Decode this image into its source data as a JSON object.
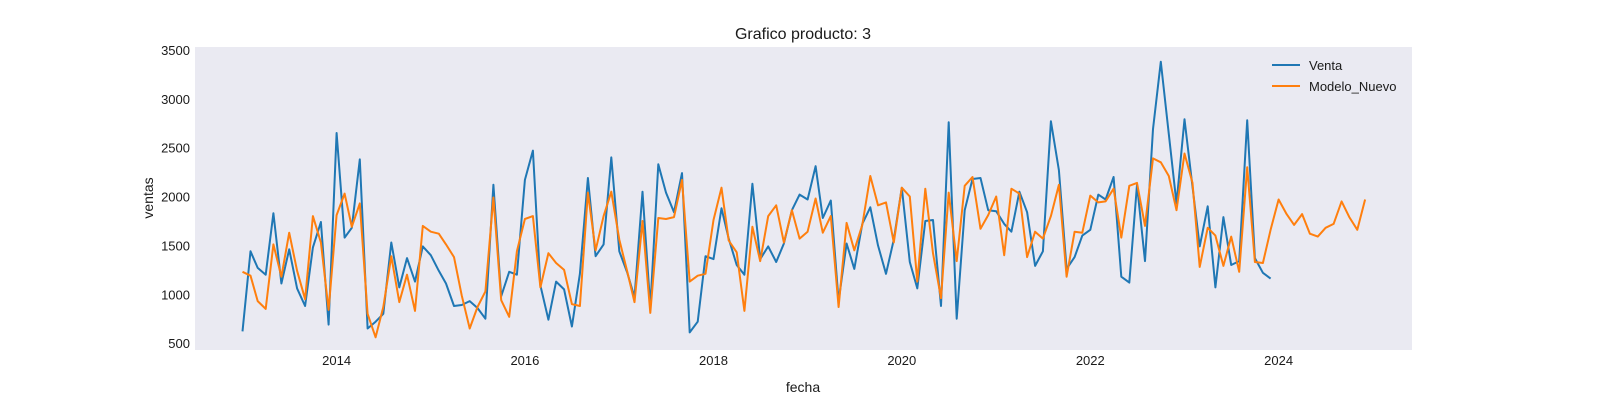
{
  "chart_data": {
    "type": "line",
    "title": "Grafico producto: 3",
    "xlabel": "fecha",
    "ylabel": "ventas",
    "xlim": [
      "2012-07-01",
      "2025-06-01"
    ],
    "ylim": [
      430,
      3530
    ],
    "x_ticks": [
      {
        "date": "2014-01-01",
        "label": "2014"
      },
      {
        "date": "2016-01-01",
        "label": "2016"
      },
      {
        "date": "2018-01-01",
        "label": "2018"
      },
      {
        "date": "2020-01-01",
        "label": "2020"
      },
      {
        "date": "2022-01-01",
        "label": "2022"
      },
      {
        "date": "2024-01-01",
        "label": "2024"
      }
    ],
    "y_ticks": [
      500,
      1000,
      1500,
      2000,
      2500,
      3000,
      3500
    ],
    "grid": false,
    "legend_position": "top-right",
    "background": "#eaeaf2",
    "series": [
      {
        "name": "Venta",
        "color": "#1f77b4",
        "start": "2013-01",
        "values": [
          620,
          1440,
          1270,
          1200,
          1830,
          1110,
          1460,
          1060,
          880,
          1480,
          1740,
          690,
          2650,
          1580,
          1680,
          2380,
          650,
          720,
          800,
          1530,
          1070,
          1370,
          1130,
          1490,
          1400,
          1240,
          1110,
          880,
          890,
          930,
          860,
          750,
          2120,
          980,
          1230,
          1200,
          2170,
          2470,
          1090,
          740,
          1130,
          1050,
          670,
          1210,
          2190,
          1390,
          1510,
          2400,
          1440,
          1220,
          970,
          2050,
          870,
          2330,
          2040,
          1840,
          2240,
          610,
          720,
          1390,
          1360,
          1880,
          1570,
          1300,
          1200,
          2130,
          1360,
          1490,
          1330,
          1520,
          1860,
          2020,
          1970,
          2310,
          1780,
          1960,
          930,
          1520,
          1260,
          1720,
          1890,
          1500,
          1210,
          1560,
          2090,
          1330,
          1060,
          1750,
          1760,
          880,
          2760,
          750,
          1860,
          2180,
          2190,
          1860,
          1850,
          1720,
          1640,
          2050,
          1840,
          1290,
          1440,
          2770,
          2270,
          1260,
          1380,
          1600,
          1660,
          2020,
          1970,
          2200,
          1180,
          1120,
          2120,
          1340,
          2690,
          3380,
          2640,
          1930,
          2790,
          2100,
          1490,
          1900,
          1070,
          1790,
          1300,
          1340,
          2780,
          1370,
          1220,
          1160
        ]
      },
      {
        "name": "Modelo_Nuevo",
        "color": "#ff7f0e",
        "start": "2013-01",
        "values": [
          1230,
          1190,
          930,
          850,
          1510,
          1180,
          1630,
          1240,
          950,
          1800,
          1530,
          840,
          1810,
          2030,
          1690,
          1930,
          800,
          560,
          870,
          1390,
          920,
          1200,
          830,
          1700,
          1640,
          1620,
          1510,
          1380,
          990,
          650,
          870,
          1030,
          1990,
          940,
          770,
          1440,
          1770,
          1800,
          1070,
          1420,
          1320,
          1250,
          900,
          880,
          2040,
          1450,
          1800,
          2050,
          1560,
          1230,
          920,
          1750,
          810,
          1780,
          1770,
          1790,
          2170,
          1130,
          1190,
          1210,
          1760,
          2090,
          1550,
          1430,
          830,
          1690,
          1340,
          1800,
          1910,
          1530,
          1860,
          1570,
          1640,
          1980,
          1630,
          1800,
          870,
          1730,
          1450,
          1710,
          2210,
          1910,
          1940,
          1530,
          2090,
          2000,
          1130,
          2080,
          1420,
          960,
          2040,
          1340,
          2110,
          2200,
          1670,
          1810,
          2000,
          1400,
          2080,
          2030,
          1380,
          1640,
          1570,
          1800,
          2120,
          1180,
          1640,
          1630,
          2010,
          1940,
          1950,
          2080,
          1580,
          2110,
          2140,
          1700,
          2390,
          2350,
          2210,
          1860,
          2440,
          2140,
          1280,
          1680,
          1600,
          1290,
          1590,
          1230,
          2300,
          1330,
          1320,
          1660,
          1970,
          1820,
          1710,
          1820,
          1620,
          1590,
          1680,
          1720,
          1950,
          1790,
          1660,
          1970
        ]
      }
    ]
  }
}
